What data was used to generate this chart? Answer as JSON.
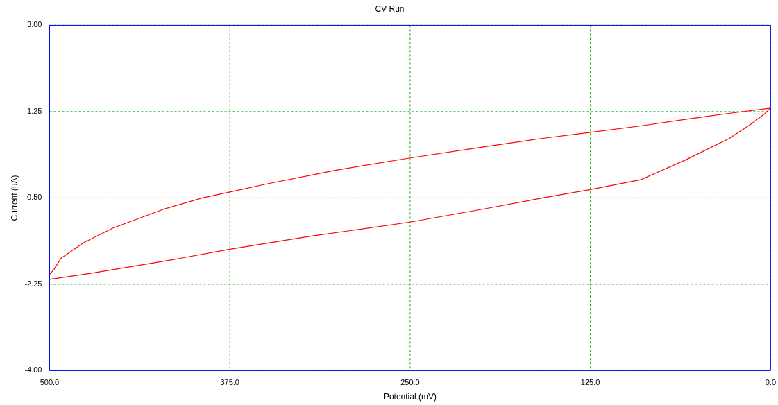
{
  "chart_data": {
    "type": "line",
    "title": "CV Run",
    "xlabel": "Potential (mV)",
    "ylabel": "Current (uA)",
    "series": [
      {
        "color": "#ff0000",
        "x": [
          0,
          30,
          60,
          90,
          125,
          160,
          200,
          250,
          300,
          350,
          375,
          394,
          420,
          456,
          476,
          492,
          497,
          500
        ],
        "values": [
          1.32,
          1.21,
          1.09,
          0.96,
          0.83,
          0.7,
          0.53,
          0.31,
          0.07,
          -0.22,
          -0.38,
          -0.5,
          -0.72,
          -1.11,
          -1.4,
          -1.72,
          -1.95,
          -2.05
        ]
      },
      {
        "color": "#ff0000",
        "x": [
          500,
          470,
          420,
          375,
          320,
          250,
          200,
          158,
          125,
          90,
          59,
          29,
          14,
          4,
          0
        ],
        "values": [
          -2.15,
          -2.02,
          -1.78,
          -1.54,
          -1.28,
          -0.99,
          -0.73,
          -0.5,
          -0.33,
          -0.13,
          0.27,
          0.7,
          0.99,
          1.21,
          1.32
        ]
      }
    ],
    "xlim": [
      500,
      0
    ],
    "xticks": [
      {
        "value": 500,
        "label": "500.0"
      },
      {
        "value": 375,
        "label": "375.0"
      },
      {
        "value": 250,
        "label": "250.0"
      },
      {
        "value": 125,
        "label": "125.0"
      },
      {
        "value": 0,
        "label": "0.0"
      }
    ],
    "ylim": [
      -4,
      3
    ],
    "yticks": [
      {
        "value": -4,
        "label": "-4.00"
      },
      {
        "value": -2.25,
        "label": "-2.25"
      },
      {
        "value": -0.5,
        "label": "-0.50"
      },
      {
        "value": 1.25,
        "label": "1.25"
      },
      {
        "value": 3,
        "label": "3.00"
      }
    ],
    "grid": true,
    "legend": false,
    "marker": "none",
    "line_style": "solid"
  }
}
